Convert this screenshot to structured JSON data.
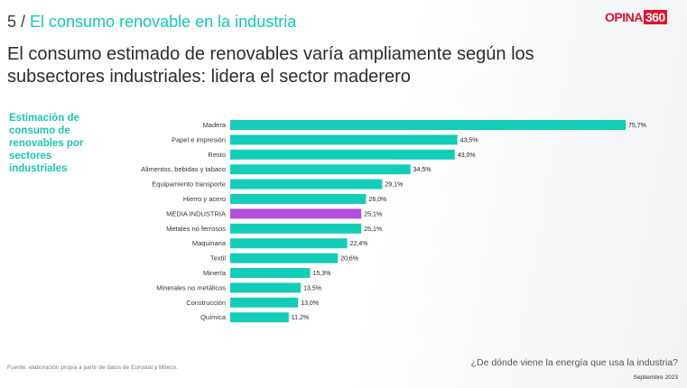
{
  "header": {
    "section_number": "5 /",
    "section_title": "El consumo renovable en la industria",
    "logo_text": "OPINA",
    "logo_badge": "360"
  },
  "headline": "El consumo estimado de renovables varía ampliamente según los subsectores industriales: lidera el sector maderero",
  "side_label": "Estimación de consumo de renovables por sectores industriales",
  "footer": {
    "source": "Fuente: elaboración propia a partir de datos de Eurostat y Miteco.",
    "question": "¿De dónde viene la energía que usa la industria?",
    "date": "Septiembre 2023"
  },
  "colors": {
    "bar": "#14cdb8",
    "highlight": "#b44fdc",
    "accent": "#14c9b4",
    "brand": "#e3122d"
  },
  "chart_data": {
    "type": "bar",
    "orientation": "horizontal",
    "categories": [
      "Madera",
      "Papel e impresión",
      "Resto",
      "Alimentos, bebidas y tabaco",
      "Equipamiento transporte",
      "Hierro y acero",
      "MEDIA INDUSTRIA",
      "Metales no ferrosos",
      "Maquinaria",
      "Textil",
      "Minería",
      "Minerales no metálicos",
      "Construcción",
      "Química"
    ],
    "values": [
      75.7,
      43.5,
      43.0,
      34.5,
      29.1,
      26.0,
      25.1,
      25.1,
      22.4,
      20.6,
      15.3,
      13.5,
      13.0,
      11.2
    ],
    "value_labels": [
      "75,7%",
      "43,5%",
      "43,0%",
      "34,5%",
      "29,1%",
      "26,0%",
      "25,1%",
      "25,1%",
      "22,4%",
      "20,6%",
      "15,3%",
      "13,5%",
      "13,0%",
      "11,2%"
    ],
    "highlighted": [
      "MEDIA INDUSTRIA"
    ],
    "xlim": [
      0,
      75.7
    ],
    "grid": false,
    "legend": "none"
  }
}
